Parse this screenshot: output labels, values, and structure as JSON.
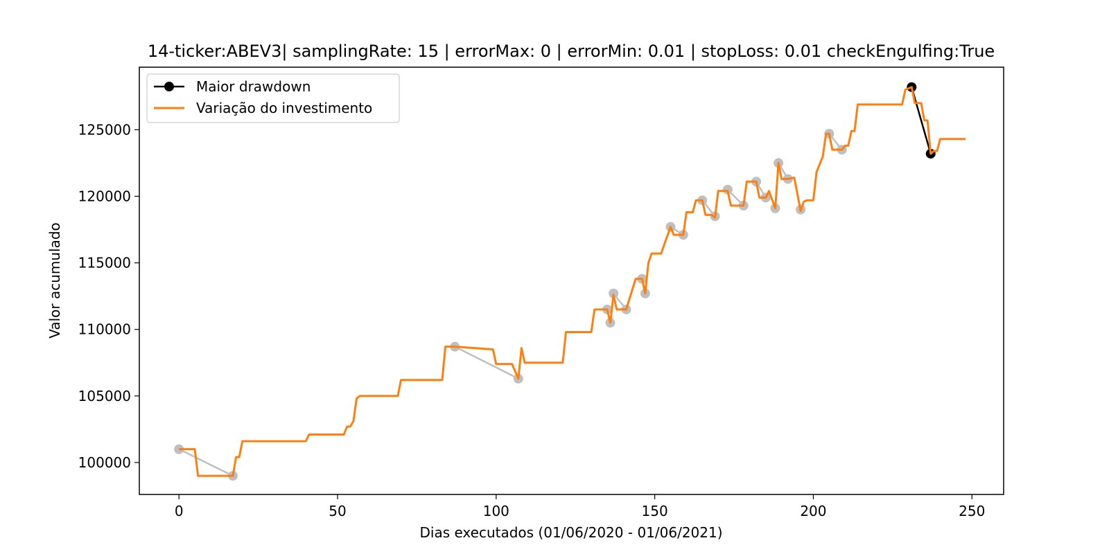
{
  "chart_data": {
    "type": "line",
    "title": "14-ticker:ABEV3| samplingRate: 15 | errorMax: 0 | errorMin: 0.01 | stopLoss: 0.01 checkEngulfing:True",
    "xlabel": "Dias executados (01/06/2020 - 01/06/2021)",
    "ylabel": "Valor acumulado",
    "xlim": [
      -12.5,
      260
    ],
    "ylim": [
      97600,
      129700
    ],
    "xticks": [
      0,
      50,
      100,
      150,
      200,
      250
    ],
    "yticks": [
      100000,
      105000,
      110000,
      115000,
      120000,
      125000
    ],
    "grid": false,
    "legend_position": "upper-left",
    "series": [
      {
        "name": "Maior drawdown",
        "color": "#000000",
        "marker": "circle",
        "x": [
          231,
          237
        ],
        "y": [
          128200,
          123200
        ]
      },
      {
        "name": "Variação do investimento",
        "color": "#ff7f0e",
        "x": [
          0,
          5,
          6,
          17,
          18,
          19,
          20,
          21,
          40,
          41,
          52,
          53,
          54,
          55,
          56,
          57,
          69,
          70,
          83,
          84,
          87,
          99,
          100,
          105,
          107,
          108,
          109,
          121,
          122,
          130,
          131,
          135,
          136,
          137,
          138,
          139,
          141,
          144,
          146,
          147,
          148,
          149,
          150,
          151,
          152,
          155,
          156,
          158,
          159,
          160,
          162,
          163,
          165,
          166,
          168,
          169,
          170,
          173,
          174,
          178,
          179,
          182,
          183,
          185,
          186,
          188,
          189,
          190,
          192,
          194,
          196,
          197,
          198,
          200,
          201,
          203,
          204,
          205,
          206,
          208,
          209,
          210,
          211,
          212,
          213,
          214,
          228,
          229,
          231,
          232,
          234,
          235,
          236,
          237,
          238,
          239,
          240,
          248
        ],
        "y": [
          101000,
          101000,
          99000,
          99000,
          100400,
          100400,
          101600,
          101600,
          101600,
          102100,
          102100,
          102700,
          102700,
          103100,
          104800,
          105000,
          105000,
          106200,
          106200,
          108700,
          108700,
          108500,
          107400,
          107400,
          106300,
          108600,
          107500,
          107500,
          109800,
          109800,
          111500,
          111500,
          110500,
          112600,
          111500,
          111500,
          111500,
          113800,
          113800,
          112700,
          115000,
          115700,
          115700,
          115700,
          115700,
          117700,
          117100,
          117100,
          117100,
          118800,
          118800,
          119700,
          119700,
          118600,
          118600,
          118400,
          120400,
          120400,
          119300,
          119300,
          121100,
          121100,
          119900,
          119900,
          120400,
          119100,
          122500,
          121300,
          121300,
          121400,
          118900,
          119600,
          119700,
          119700,
          121800,
          123000,
          124700,
          124700,
          123500,
          123500,
          123500,
          123800,
          123800,
          124900,
          124900,
          126900,
          126900,
          128000,
          128200,
          127000,
          127000,
          125700,
          125700,
          123200,
          123400,
          123400,
          124300,
          124300
        ]
      }
    ],
    "gray_markers": {
      "color": "#bfbfbf",
      "segments": [
        [
          [
            0,
            101000
          ],
          [
            17,
            99000
          ]
        ],
        [
          [
            87,
            108700
          ],
          [
            107,
            106300
          ]
        ],
        [
          [
            135,
            111500
          ],
          [
            136,
            110500
          ]
        ],
        [
          [
            137,
            112700
          ],
          [
            141,
            111500
          ]
        ],
        [
          [
            146,
            113800
          ],
          [
            147,
            112700
          ]
        ],
        [
          [
            155,
            117700
          ],
          [
            159,
            117100
          ]
        ],
        [
          [
            165,
            119700
          ],
          [
            169,
            118500
          ]
        ],
        [
          [
            173,
            120500
          ],
          [
            178,
            119300
          ]
        ],
        [
          [
            182,
            121100
          ],
          [
            185,
            119900
          ]
        ],
        [
          [
            188,
            119100
          ],
          [
            188,
            119100
          ]
        ],
        [
          [
            189,
            122500
          ],
          [
            192,
            121300
          ]
        ],
        [
          [
            196,
            119000
          ],
          [
            196,
            119000
          ]
        ],
        [
          [
            205,
            124700
          ],
          [
            209,
            123500
          ]
        ]
      ]
    }
  }
}
